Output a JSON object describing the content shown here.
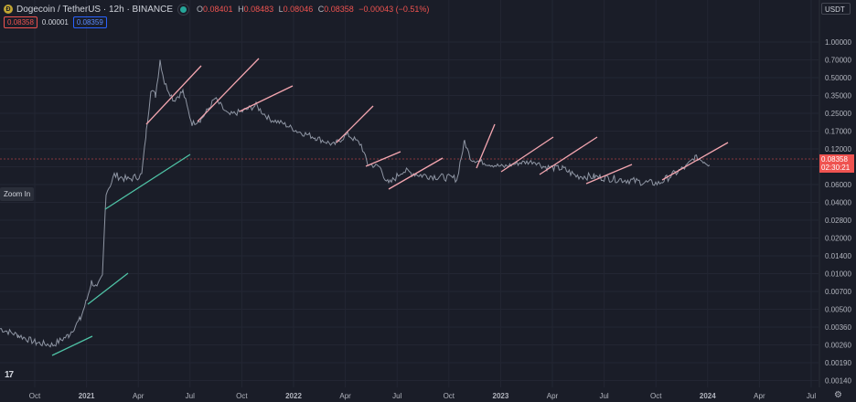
{
  "header": {
    "symbol": "Dogecoin / TetherUS · 12h · BINANCE",
    "open_label": "O",
    "open": "0.08401",
    "high_label": "H",
    "high": "0.08483",
    "low_label": "L",
    "low": "0.08046",
    "close_label": "C",
    "close": "0.08358",
    "change": "−0.00043 (−0.51%)",
    "bid": "0.08358",
    "spread": "0.00001",
    "ask": "0.08359"
  },
  "toolbar": {
    "currency": "USDT",
    "zoom_in_label": "Zoom In"
  },
  "price_scale": {
    "ticks": [
      "1.00000",
      "0.70000",
      "0.50000",
      "0.35000",
      "0.25000",
      "0.17000",
      "0.12000",
      "0.08000",
      "0.06000",
      "0.04000",
      "0.02800",
      "0.02000",
      "0.01400",
      "0.01000",
      "0.00700",
      "0.00500",
      "0.00360",
      "0.00260",
      "0.00190",
      "0.00140"
    ]
  },
  "current_price": {
    "value": "0.08358",
    "countdown": "02:30:21"
  },
  "time_axis": {
    "labels": [
      "Oct",
      "2021",
      "Apr",
      "Jul",
      "Oct",
      "2022",
      "Apr",
      "Jul",
      "Oct",
      "2023",
      "Apr",
      "Jul",
      "Oct",
      "2024",
      "Apr",
      "Jul"
    ]
  },
  "branding": {
    "logo": "17"
  },
  "colors": {
    "background": "#1a1d28",
    "up": "#26a69a",
    "down": "#ef5350",
    "trend_pink": "#f4a6b0",
    "trend_teal": "#4fc3a6"
  },
  "chart_data": {
    "type": "line",
    "title": "Dogecoin / TetherUS · 12h · BINANCE",
    "y_scale": "log",
    "ylim": [
      0.0012,
      1.2
    ],
    "x": [
      "Oct",
      "2021",
      "Apr",
      "Jul",
      "Oct",
      "2022",
      "Apr",
      "Jul",
      "Oct",
      "2023",
      "Apr",
      "Jul",
      "Oct",
      "2024"
    ],
    "series": [
      {
        "values": [
          0.0029,
          0.0086,
          0.06,
          0.32,
          0.24,
          0.19,
          0.15,
          0.12,
          0.065,
          0.062,
          0.069,
          0.073,
          0.063,
          0.083
        ]
      }
    ]
  }
}
